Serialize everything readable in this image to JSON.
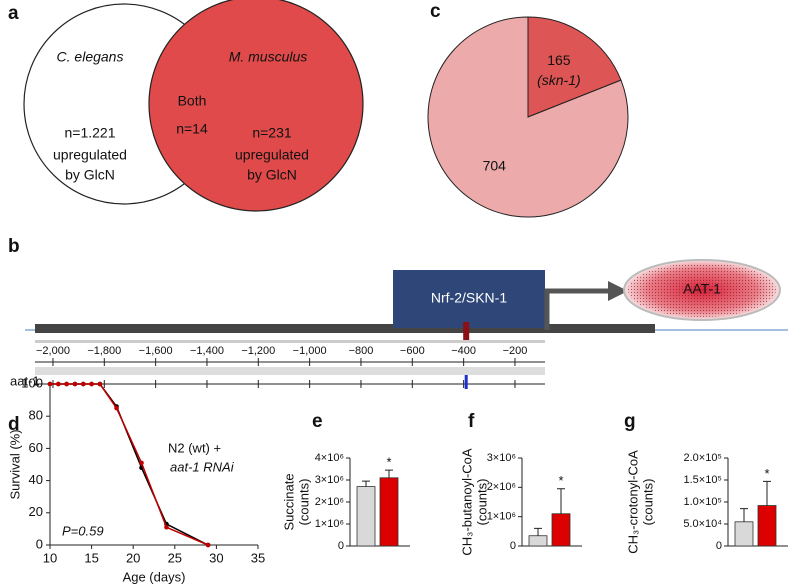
{
  "venn": {
    "panel": "a",
    "left": {
      "title": "C. elegans",
      "count": "n=1.221",
      "lines": [
        "upregulated",
        "by GlcN"
      ]
    },
    "overlap": {
      "title": "Both",
      "count": "n=14"
    },
    "right": {
      "title": "M. musculus",
      "count": "n=231",
      "lines": [
        "upregulated",
        "by GlcN"
      ]
    }
  },
  "gene_diagram": {
    "panel": "b",
    "factor": "Nrf-2/SKN-1",
    "product": "AAT-1",
    "track": "aat-1",
    "xlim": [
      -2070,
      -83
    ],
    "motif_position": -390,
    "xticks": [
      {
        "value": -2000,
        "label": "−2,000"
      },
      {
        "value": -1800,
        "label": "−1,800"
      },
      {
        "value": -1600,
        "label": "−1,600"
      },
      {
        "value": -1400,
        "label": "−1,400"
      },
      {
        "value": -1200,
        "label": "−1,200"
      },
      {
        "value": -1000,
        "label": "−1,000"
      },
      {
        "value": -800,
        "label": "−800"
      },
      {
        "value": -600,
        "label": "−600"
      },
      {
        "value": -400,
        "label": "−400"
      },
      {
        "value": -200,
        "label": "−200"
      }
    ]
  },
  "chart_data": [
    {
      "type": "pie",
      "panel": "c",
      "values": [
        165,
        704
      ],
      "colors": [
        "#de5555",
        "#edaaaa"
      ],
      "annotations": [
        "(skn-1)",
        null
      ]
    },
    {
      "type": "line",
      "panel": "d",
      "x": [
        10,
        11,
        12,
        13,
        14,
        15,
        16,
        18,
        21,
        24,
        29
      ],
      "series": [
        {
          "color": "#000000",
          "values": [
            100,
            100,
            100,
            100,
            100,
            100,
            100,
            86,
            48,
            13,
            0
          ]
        },
        {
          "color": "#c00000",
          "values": [
            100,
            100,
            100,
            100,
            100,
            100,
            100,
            85,
            51,
            11,
            0
          ]
        }
      ],
      "xlim": [
        10,
        35
      ],
      "ylim": [
        0,
        100
      ],
      "xticks": [
        10,
        15,
        20,
        25,
        30,
        35
      ],
      "yticks": [
        0,
        20,
        40,
        60,
        80,
        100
      ],
      "xlabel": "Age (days)",
      "ylabel": "Survival (%)",
      "annotations": [
        "N2 (wt) +",
        "aat-1 RNAi",
        "P=0.59"
      ]
    },
    {
      "type": "bar",
      "panel": "e",
      "ylabel": [
        "Succinate",
        "(counts)"
      ],
      "values": [
        2700000,
        3100000
      ],
      "errors": [
        250000,
        350000
      ],
      "colors": [
        "#d9d9d9",
        "#dd0000"
      ],
      "ylim": [
        0,
        4000000
      ],
      "yticks": [
        0,
        {
          "value": 1000000,
          "label": "1×10⁶"
        },
        {
          "value": 2000000,
          "label": "2×10⁶"
        },
        {
          "value": 3000000,
          "label": "3×10⁶"
        },
        {
          "value": 4000000,
          "label": "4×10⁶"
        }
      ],
      "annotation": "*"
    },
    {
      "type": "bar",
      "panel": "f",
      "ylabel": [
        "CH₃-butanoyl-CoA",
        "(counts)"
      ],
      "values": [
        350000,
        1100000
      ],
      "errors": [
        250000,
        850000
      ],
      "colors": [
        "#d9d9d9",
        "#dd0000"
      ],
      "ylim": [
        0,
        3000000
      ],
      "yticks": [
        0,
        {
          "value": 1000000,
          "label": "1×10⁶"
        },
        {
          "value": 2000000,
          "label": "2×10⁶"
        },
        {
          "value": 3000000,
          "label": "3×10⁶"
        }
      ],
      "annotation": "*"
    },
    {
      "type": "bar",
      "panel": "g",
      "ylabel": [
        "CH₃-crotonyl-CoA",
        "(counts)"
      ],
      "values": [
        55000,
        92000
      ],
      "errors": [
        30000,
        55000
      ],
      "colors": [
        "#d9d9d9",
        "#dd0000"
      ],
      "ylim": [
        0,
        200000
      ],
      "yticks": [
        0,
        {
          "value": 50000,
          "label": "5.0×10⁴"
        },
        {
          "value": 100000,
          "label": "1.0×10⁵"
        },
        {
          "value": 150000,
          "label": "1.5×10⁵"
        },
        {
          "value": 200000,
          "label": "2.0×10⁵"
        }
      ],
      "annotation": "*"
    }
  ]
}
